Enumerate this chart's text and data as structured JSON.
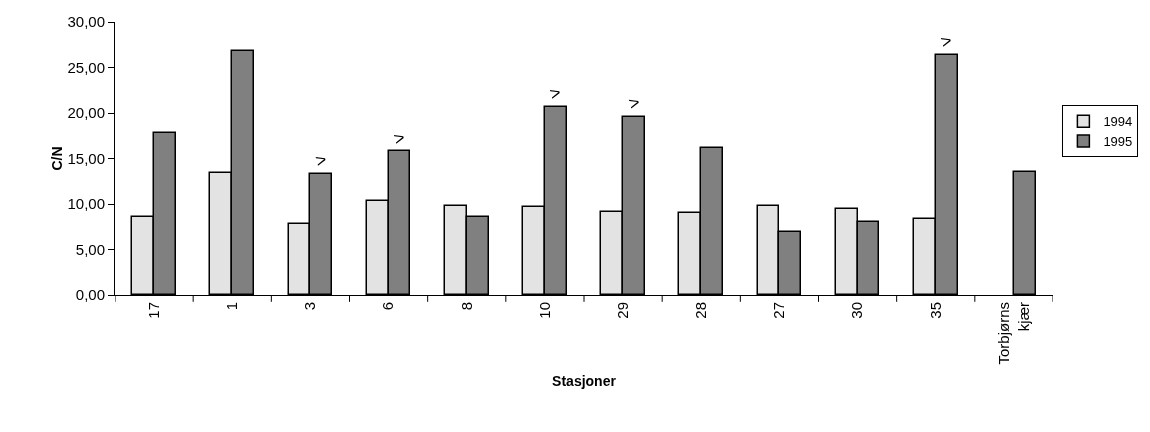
{
  "chart_data": {
    "type": "bar",
    "xlabel": "Stasjoner",
    "ylabel": "C/N",
    "categories": [
      "17",
      "1",
      "3",
      "6",
      "8",
      "10",
      "29",
      "28",
      "27",
      "30",
      "35",
      "Torbjørns kjær"
    ],
    "series": [
      {
        "name": "1994",
        "color": "#e3e3e3",
        "values": [
          8.6,
          13.4,
          7.8,
          10.3,
          9.8,
          9.7,
          9.1,
          9.0,
          9.8,
          9.5,
          8.4,
          null
        ]
      },
      {
        "name": "1995",
        "color": "#808080",
        "values": [
          17.8,
          26.8,
          13.3,
          15.8,
          8.6,
          20.7,
          19.6,
          16.1,
          6.9,
          8.0,
          26.4,
          13.5
        ]
      }
    ],
    "ylim": [
      0,
      30
    ],
    "yticks": [
      {
        "value": 0,
        "label": "0,00"
      },
      {
        "value": 5,
        "label": "5,00"
      },
      {
        "value": 10,
        "label": "10,00"
      },
      {
        "value": 15,
        "label": "15,00"
      },
      {
        "value": 20,
        "label": "20,00"
      },
      {
        "value": 25,
        "label": "25,00"
      },
      {
        "value": 30,
        "label": "30,00"
      }
    ],
    "annotations": [
      {
        "text": ">",
        "x": "3",
        "y": 13.3
      },
      {
        "text": ">",
        "x": "6",
        "y": 15.8
      },
      {
        "text": ">",
        "x": "10",
        "y": 20.7
      },
      {
        "text": ">",
        "x": "29",
        "y": 19.6
      },
      {
        "text": ">",
        "x": "35",
        "y": 26.4
      }
    ],
    "grid": false,
    "legend": "right"
  }
}
